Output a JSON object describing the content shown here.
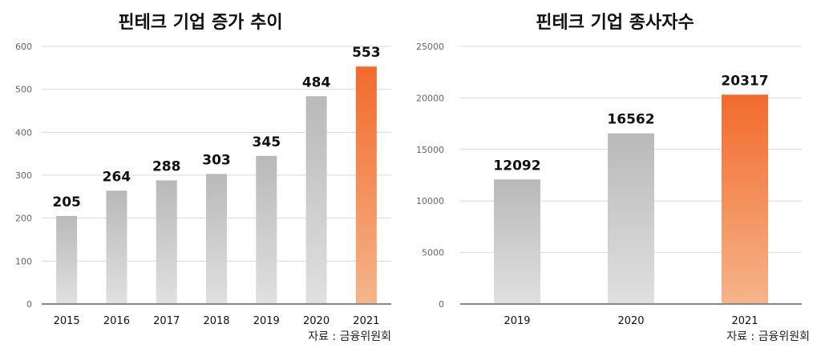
{
  "source_label": "자료 : 금융위원회",
  "colors": {
    "gray_top": "#b9b9b9",
    "gray_bottom": "#e0e0e0",
    "orange_top": "#f26a2c",
    "orange_bottom": "#f6b48a"
  },
  "chart_data": [
    {
      "type": "bar",
      "title": "핀테크 기업 증가 추이",
      "categories": [
        "2015",
        "2016",
        "2017",
        "2018",
        "2019",
        "2020",
        "2021"
      ],
      "values": [
        205,
        264,
        288,
        303,
        345,
        484,
        553
      ],
      "value_labels": [
        "205",
        "264",
        "288",
        "303",
        "345",
        "484",
        "553"
      ],
      "highlight": "2021",
      "ylim": [
        0,
        600
      ],
      "yticks": [
        "0",
        "100",
        "200",
        "300",
        "400",
        "500",
        "600"
      ],
      "grid": true,
      "xlabel": "",
      "ylabel": ""
    },
    {
      "type": "bar",
      "title": "핀테크 기업 종사자수",
      "categories": [
        "2019",
        "2020",
        "2021"
      ],
      "values": [
        12092,
        16562,
        20317
      ],
      "value_labels": [
        "12092",
        "16562",
        "20317"
      ],
      "highlight": "2021",
      "ylim": [
        0,
        25000
      ],
      "yticks": [
        "0",
        "5000",
        "10000",
        "15000",
        "20000",
        "25000"
      ],
      "grid": true,
      "xlabel": "",
      "ylabel": ""
    }
  ]
}
